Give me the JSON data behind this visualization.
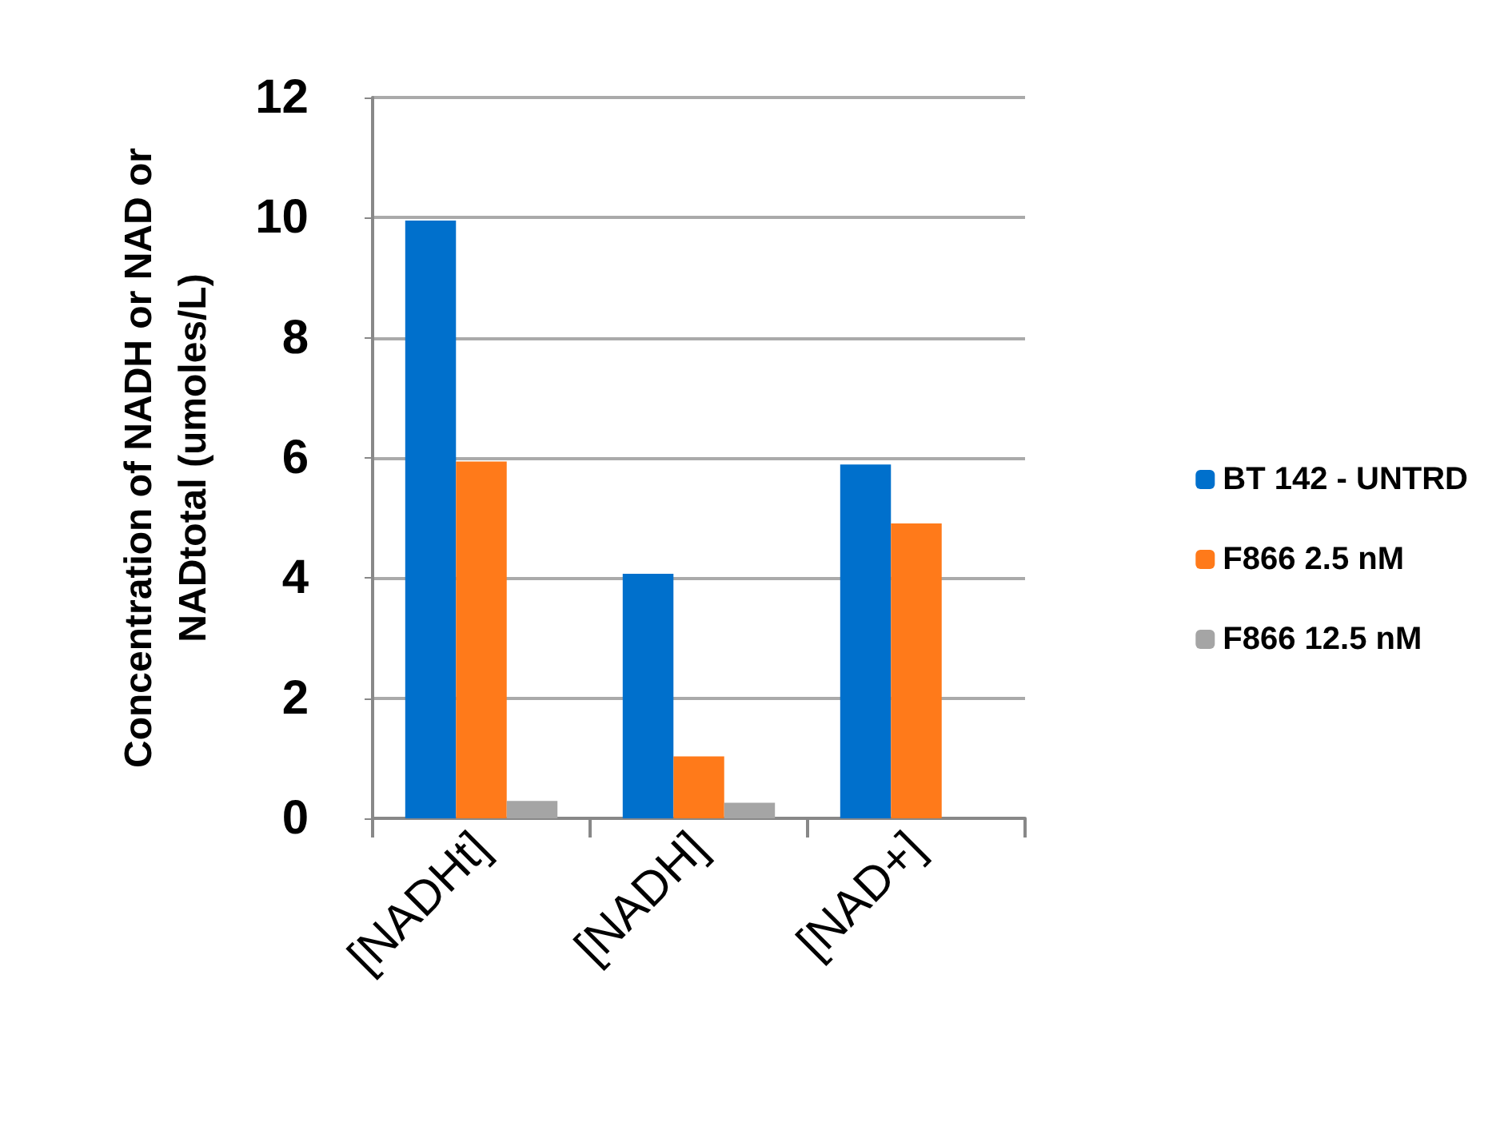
{
  "chart_data": {
    "type": "bar",
    "ylabel": "Concentration of NADH or NAD or\nNADtotal (umoles/L)",
    "categories": [
      "[NADHt]",
      "[NADH]",
      "[NAD+]"
    ],
    "series": [
      {
        "name": "BT 142 - UNTRD",
        "color": "#0070cc",
        "values": [
          9.95,
          4.07,
          5.89
        ]
      },
      {
        "name": "F866 2.5 nM",
        "color": "#ff7a1a",
        "values": [
          5.94,
          1.03,
          4.91
        ]
      },
      {
        "name": "F866 12.5 nM",
        "color": "#a5a5a5",
        "values": [
          0.29,
          0.26,
          0
        ]
      }
    ],
    "ylim": [
      0,
      12
    ],
    "yticks": [
      0,
      2,
      4,
      6,
      8,
      10,
      12
    ],
    "grid": "y",
    "legend": "right"
  }
}
